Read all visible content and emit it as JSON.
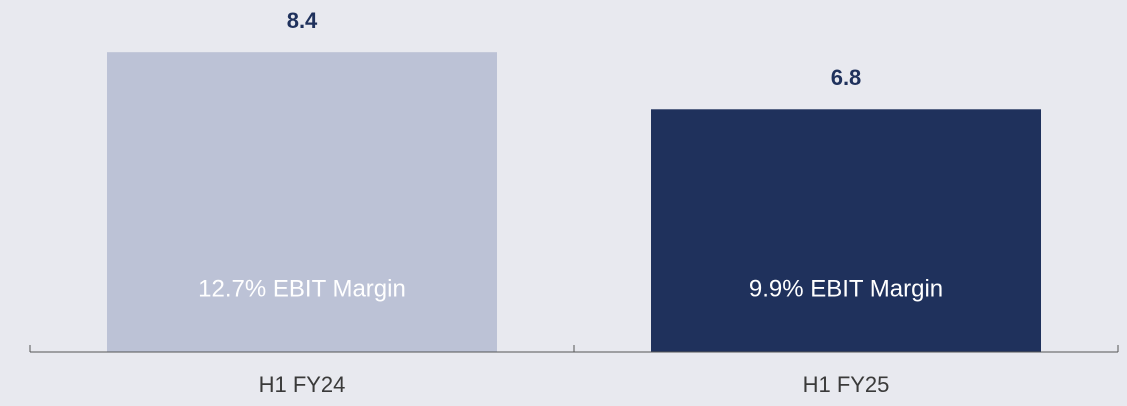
{
  "chart_data": {
    "type": "bar",
    "categories": [
      "H1 FY24",
      "H1 FY25"
    ],
    "values": [
      8.4,
      6.8
    ],
    "colors": [
      "#bcc2d6",
      "#1f315c"
    ],
    "annotations": [
      "12.7% EBIT Margin",
      "9.9% EBIT Margin"
    ],
    "ylim": [
      0,
      9.75
    ]
  }
}
